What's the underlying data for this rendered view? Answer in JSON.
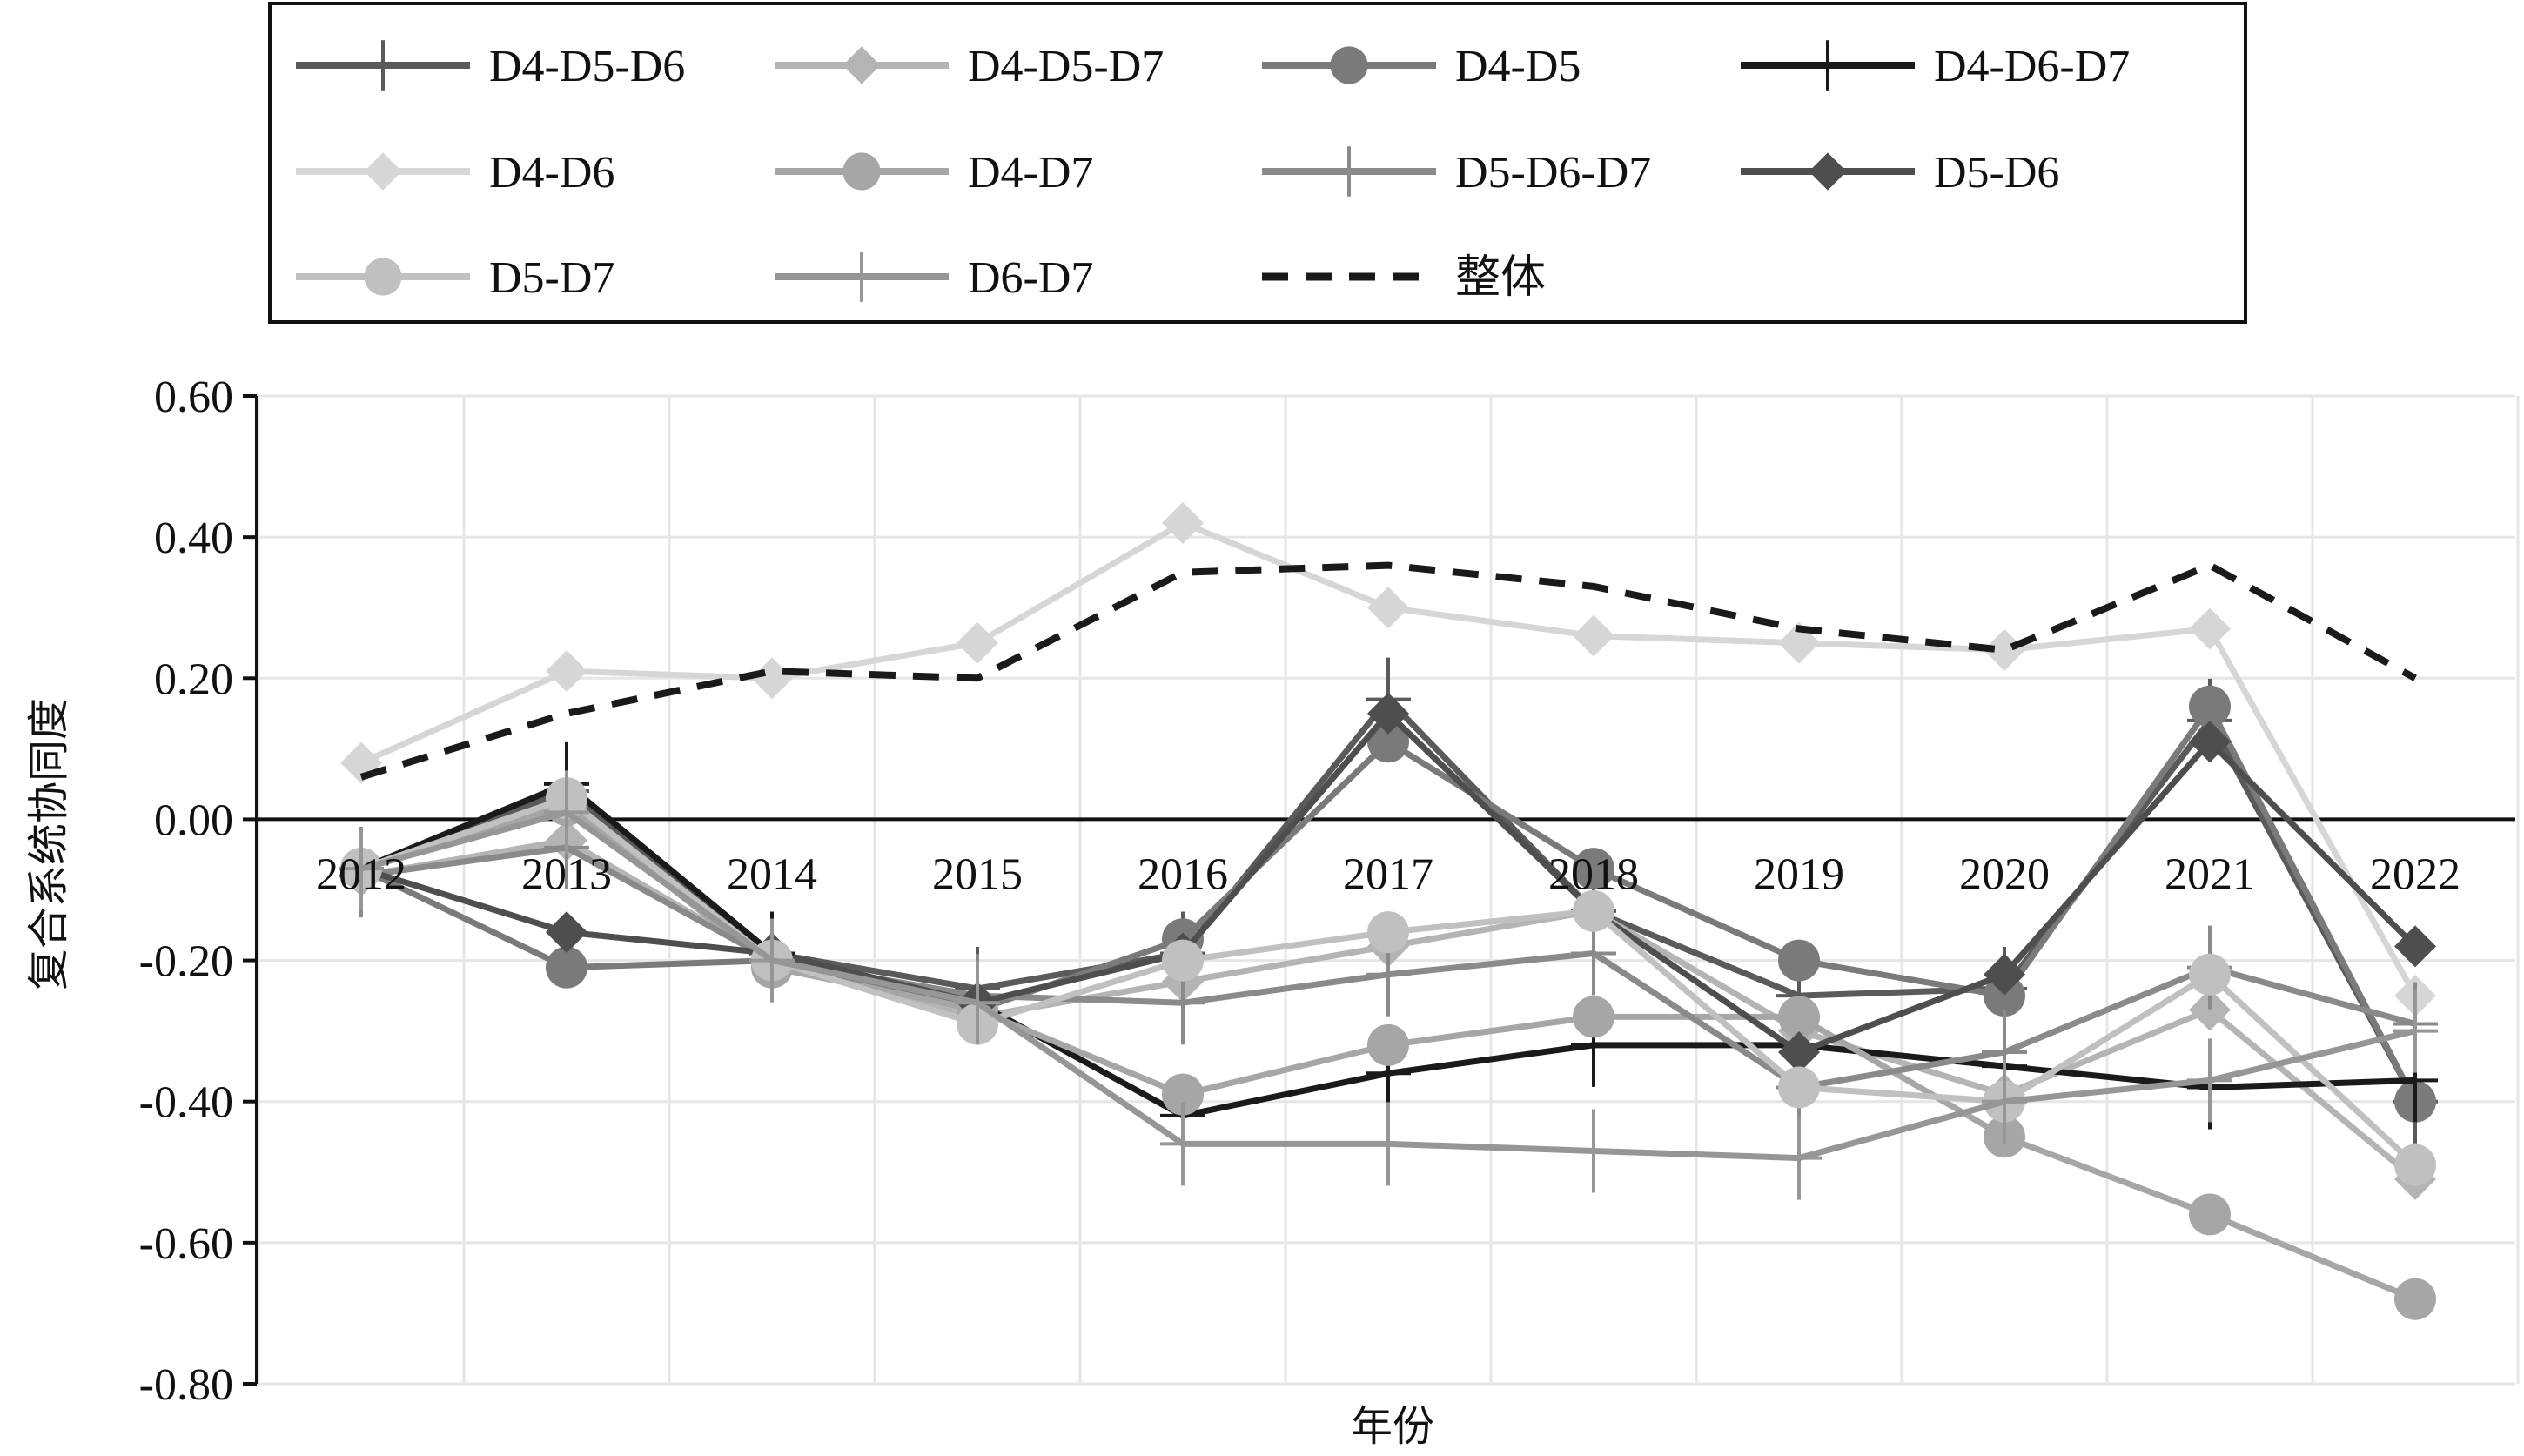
{
  "chart_data": {
    "type": "line",
    "title": "",
    "xlabel": "年份",
    "ylabel": "复合系统协同度",
    "ylim": [
      -0.8,
      0.6
    ],
    "yticks": [
      "0.60",
      "0.40",
      "0.20",
      "0.00",
      "-0.20",
      "-0.40",
      "-0.60",
      "-0.80"
    ],
    "categories": [
      "2012",
      "2013",
      "2014",
      "2015",
      "2016",
      "2017",
      "2018",
      "2019",
      "2020",
      "2021",
      "2022"
    ],
    "grid": true,
    "legend_position": "top",
    "series": [
      {
        "name": "D4-D5-D6",
        "marker": "plus",
        "color": "#5a5a5a",
        "dashed": false,
        "values": [
          -0.07,
          0.04,
          -0.19,
          -0.24,
          -0.19,
          0.17,
          -0.13,
          -0.25,
          -0.24,
          0.14,
          -0.4
        ]
      },
      {
        "name": "D4-D5-D7",
        "marker": "diamond",
        "color": "#b4b4b4",
        "dashed": false,
        "values": [
          -0.08,
          -0.03,
          -0.2,
          -0.28,
          -0.23,
          -0.18,
          -0.13,
          -0.3,
          -0.39,
          -0.27,
          -0.51
        ]
      },
      {
        "name": "D4-D5",
        "marker": "circle",
        "color": "#7a7a7a",
        "dashed": false,
        "values": [
          -0.07,
          -0.21,
          -0.2,
          -0.27,
          -0.17,
          0.11,
          -0.07,
          -0.2,
          -0.25,
          0.16,
          -0.4
        ]
      },
      {
        "name": "D4-D6-D7",
        "marker": "plus",
        "color": "#1a1a1a",
        "dashed": false,
        "values": [
          -0.07,
          0.05,
          -0.19,
          -0.26,
          -0.42,
          -0.36,
          -0.32,
          -0.32,
          -0.35,
          -0.38,
          -0.37
        ]
      },
      {
        "name": "D4-D6",
        "marker": "diamond",
        "color": "#d6d6d6",
        "dashed": false,
        "values": [
          0.08,
          0.21,
          0.2,
          0.25,
          0.42,
          0.3,
          0.26,
          0.25,
          0.24,
          0.27,
          -0.25
        ]
      },
      {
        "name": "D4-D7",
        "marker": "circle",
        "color": "#a6a6a6",
        "dashed": false,
        "values": [
          -0.07,
          0.02,
          -0.21,
          -0.27,
          -0.39,
          -0.32,
          -0.28,
          -0.28,
          -0.45,
          -0.56,
          -0.68
        ]
      },
      {
        "name": "D5-D6-D7",
        "marker": "plus",
        "color": "#8a8a8a",
        "dashed": false,
        "values": [
          -0.08,
          -0.04,
          -0.2,
          -0.25,
          -0.26,
          -0.22,
          -0.19,
          -0.38,
          -0.33,
          -0.21,
          -0.29
        ]
      },
      {
        "name": "D5-D6",
        "marker": "diamond",
        "color": "#4e4e4e",
        "dashed": false,
        "values": [
          -0.07,
          -0.16,
          -0.19,
          -0.26,
          -0.19,
          0.15,
          -0.13,
          -0.33,
          -0.22,
          0.11,
          -0.18
        ]
      },
      {
        "name": "D5-D7",
        "marker": "circle",
        "color": "#c0c0c0",
        "dashed": false,
        "values": [
          -0.07,
          0.03,
          -0.2,
          -0.29,
          -0.2,
          -0.16,
          -0.13,
          -0.38,
          -0.4,
          -0.22,
          -0.49
        ]
      },
      {
        "name": "D6-D7",
        "marker": "plus",
        "color": "#969696",
        "dashed": false,
        "values": [
          -0.07,
          0.01,
          -0.2,
          -0.26,
          -0.46,
          -0.46,
          -0.47,
          -0.48,
          -0.4,
          -0.37,
          -0.3
        ]
      },
      {
        "name": "整体",
        "marker": "none",
        "color": "#1a1a1a",
        "dashed": true,
        "values": [
          0.06,
          0.15,
          0.21,
          0.2,
          0.35,
          0.36,
          0.33,
          0.27,
          0.24,
          0.36,
          0.2
        ]
      }
    ]
  }
}
